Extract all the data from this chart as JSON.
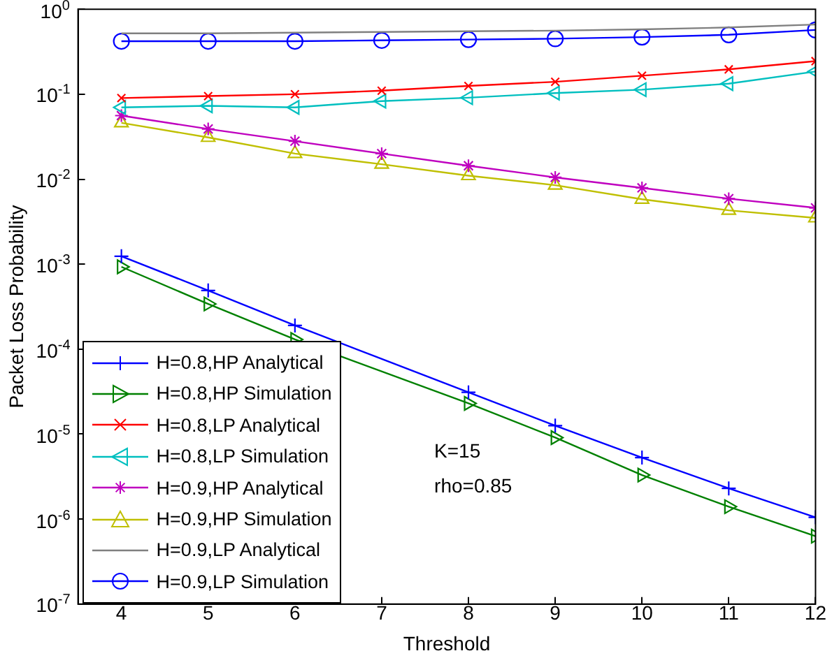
{
  "chart_data": {
    "type": "line",
    "xlabel": "Threshold",
    "ylabel": "Packet Loss Probability",
    "x": [
      4,
      5,
      6,
      7,
      8,
      9,
      10,
      11,
      12
    ],
    "xlim": [
      3.5,
      12
    ],
    "xticks": [
      4,
      5,
      6,
      7,
      8,
      9,
      10,
      11,
      12
    ],
    "ylim": [
      1e-07,
      1
    ],
    "log": "y",
    "yticks": [
      {
        "value": 1e-07,
        "label": "10$^{-7}$"
      },
      {
        "value": 1e-06,
        "label": "10$^{-6}$"
      },
      {
        "value": 1e-05,
        "label": "10$^{-5}$"
      },
      {
        "value": 0.0001,
        "label": "10$^{-4}$"
      },
      {
        "value": 0.001,
        "label": "10$^{-3}$"
      },
      {
        "value": 0.01,
        "label": "10$^{-2}$"
      },
      {
        "value": 0.1,
        "label": "10$^{-1}$"
      },
      {
        "value": 1,
        "label": "10$^{0}$"
      }
    ],
    "grid": false,
    "legend": "bottom left",
    "line_style": "solid",
    "annotations": [
      "K=15",
      "rho=0.85"
    ],
    "series": [
      {
        "name": "H=0.8,HP Analytical",
        "color": "#0000ff",
        "marker": "plus",
        "values": [
          0.00124,
          0.00049,
          0.00019,
          null,
          3.1e-05,
          1.26e-05,
          5.3e-06,
          2.3e-06,
          1.05e-06
        ]
      },
      {
        "name": "H=0.8,HP Simulation",
        "color": "#008000",
        "marker": "triangle-right",
        "values": [
          0.00093,
          0.00034,
          0.00013,
          null,
          2.3e-05,
          9.1e-06,
          3.3e-06,
          1.4e-06,
          6.3e-07
        ]
      },
      {
        "name": "H=0.8,LP Analytical",
        "color": "#ff0000",
        "marker": "x",
        "values": [
          0.09,
          0.095,
          0.1,
          0.11,
          0.125,
          0.14,
          0.165,
          0.196,
          0.245
        ]
      },
      {
        "name": "H=0.8,LP Simulation",
        "color": "#00bfbf",
        "marker": "triangle-left",
        "values": [
          0.07,
          0.073,
          0.07,
          0.083,
          0.091,
          0.103,
          0.113,
          0.133,
          0.185
        ]
      },
      {
        "name": "H=0.9,HP Analytical",
        "color": "#bf00bf",
        "marker": "cross",
        "values": [
          0.056,
          0.039,
          0.028,
          0.02,
          0.0144,
          0.0105,
          0.0079,
          0.0059,
          0.0046
        ]
      },
      {
        "name": "H=0.9,HP Simulation",
        "color": "#bfbf00",
        "marker": "triangle",
        "values": [
          0.046,
          0.031,
          0.02,
          0.015,
          0.011,
          0.0085,
          0.0058,
          0.0043,
          0.0035
        ]
      },
      {
        "name": "H=0.9,LP Analytical",
        "color": "#808080",
        "marker": "none",
        "values": [
          0.52,
          0.52,
          0.53,
          0.54,
          0.55,
          0.56,
          0.58,
          0.61,
          0.66
        ]
      },
      {
        "name": "H=0.9,LP Simulation",
        "color": "#0000ff",
        "marker": "circle",
        "values": [
          0.42,
          0.42,
          0.42,
          0.43,
          0.44,
          0.45,
          0.47,
          0.5,
          0.57
        ]
      }
    ]
  }
}
